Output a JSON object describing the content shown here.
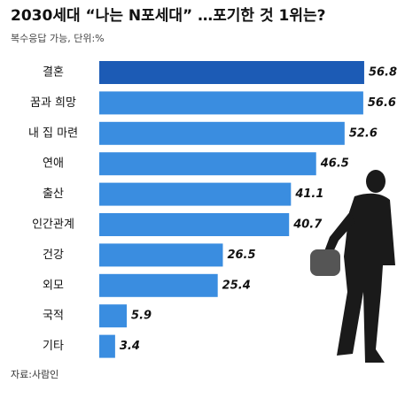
{
  "chart_data": {
    "type": "hbar",
    "title": "2030세대 “나는 N포세대” …포기한 것 1위는?",
    "subtitle": "복수응답 가능, 단위:%",
    "source": "자료:사람인",
    "categories": [
      "결혼",
      "꿈과 희망",
      "내 집 마련",
      "연애",
      "출산",
      "인간관계",
      "건강",
      "외모",
      "국적",
      "기타"
    ],
    "values": [
      56.8,
      56.6,
      52.6,
      46.5,
      41.1,
      40.7,
      26.5,
      25.4,
      5.9,
      3.4
    ],
    "colors": [
      "#1c5bb5",
      "#3a8de0",
      "#3a8de0",
      "#3a8de0",
      "#3a8de0",
      "#3a8de0",
      "#3a8de0",
      "#3a8de0",
      "#3a8de0",
      "#3a8de0"
    ],
    "xlim": [
      0,
      57
    ]
  }
}
